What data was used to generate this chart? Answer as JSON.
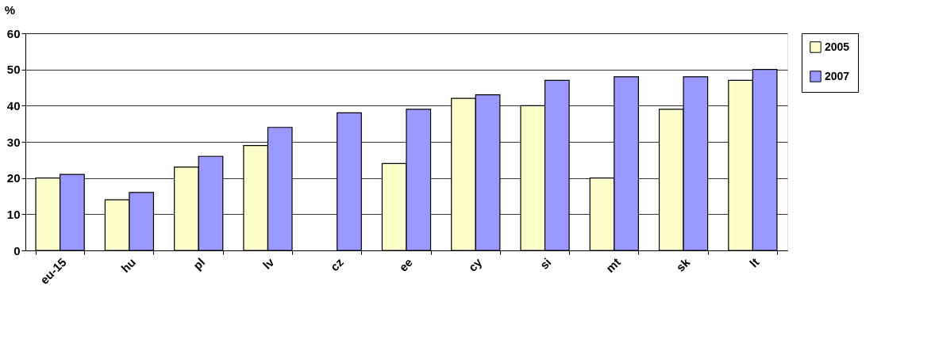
{
  "chart_data": {
    "type": "bar",
    "ylabel": "%",
    "categories": [
      "eu-15",
      "hu",
      "pl",
      "lv",
      "cz",
      "ee",
      "cy",
      "si",
      "mt",
      "sk",
      "lt"
    ],
    "series": [
      {
        "name": "2005",
        "color": "#ffffcc",
        "values": [
          20,
          14,
          23,
          29,
          null,
          24,
          42,
          40,
          20,
          39,
          47
        ]
      },
      {
        "name": "2007",
        "color": "#9999ff",
        "values": [
          21,
          16,
          26,
          34,
          38,
          39,
          43,
          47,
          48,
          48,
          50
        ]
      }
    ],
    "ylim": [
      0,
      60
    ],
    "yticks": [
      0,
      10,
      20,
      30,
      40,
      50,
      60
    ],
    "grid": "y",
    "legend": "right"
  }
}
